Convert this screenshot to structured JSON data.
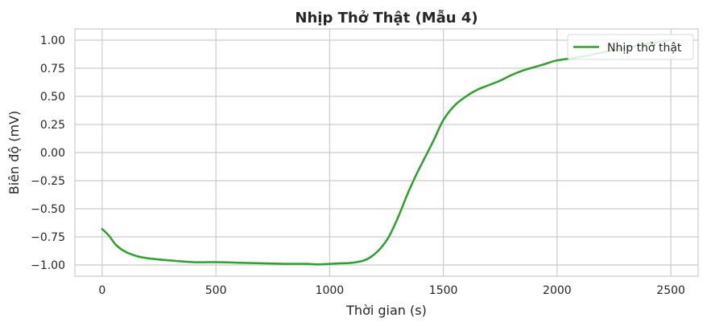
{
  "chart_data": {
    "type": "line",
    "title": "Nhịp Thở Thật (Mẫu 4)",
    "xlabel": "Thời gian (s)",
    "ylabel": "Biên độ (mV)",
    "xlim": [
      -120,
      2620
    ],
    "ylim": [
      -1.1,
      1.1
    ],
    "xticks": [
      0,
      500,
      1000,
      1500,
      2000,
      2500
    ],
    "yticks": [
      -1.0,
      -0.75,
      -0.5,
      -0.25,
      0.0,
      0.25,
      0.5,
      0.75,
      1.0
    ],
    "xtick_labels": [
      "0",
      "500",
      "1000",
      "1500",
      "2000",
      "2500"
    ],
    "ytick_labels": [
      "−1.00",
      "−0.75",
      "−0.50",
      "−0.25",
      "0.00",
      "0.25",
      "0.50",
      "0.75",
      "1.00"
    ],
    "grid": true,
    "legend_position": "top-right",
    "series": [
      {
        "name": "Nhịp thở thật",
        "color": "#2ca02c",
        "x": [
          0,
          30,
          60,
          100,
          150,
          200,
          300,
          400,
          500,
          600,
          700,
          800,
          900,
          950,
          1000,
          1050,
          1100,
          1150,
          1180,
          1220,
          1260,
          1300,
          1340,
          1380,
          1420,
          1460,
          1500,
          1550,
          1600,
          1650,
          1700,
          1750,
          1800,
          1850,
          1900,
          1950,
          2000,
          2100,
          2200,
          2300,
          2400,
          2500
        ],
        "y": [
          -0.68,
          -0.74,
          -0.82,
          -0.88,
          -0.92,
          -0.94,
          -0.96,
          -0.975,
          -0.975,
          -0.98,
          -0.985,
          -0.99,
          -0.99,
          -0.995,
          -0.99,
          -0.985,
          -0.98,
          -0.96,
          -0.93,
          -0.86,
          -0.75,
          -0.58,
          -0.38,
          -0.2,
          -0.04,
          0.12,
          0.29,
          0.42,
          0.5,
          0.56,
          0.6,
          0.64,
          0.69,
          0.73,
          0.76,
          0.79,
          0.82,
          0.85,
          0.89,
          0.93,
          0.97,
          1.0
        ]
      }
    ]
  }
}
